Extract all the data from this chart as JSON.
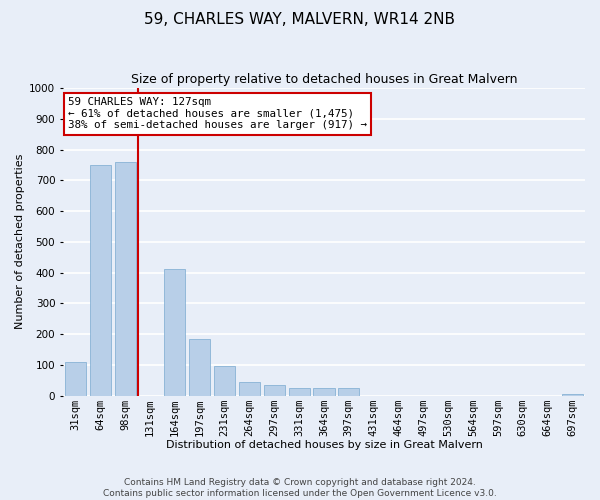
{
  "title": "59, CHARLES WAY, MALVERN, WR14 2NB",
  "subtitle": "Size of property relative to detached houses in Great Malvern",
  "xlabel": "Distribution of detached houses by size in Great Malvern",
  "ylabel": "Number of detached properties",
  "categories": [
    "31sqm",
    "64sqm",
    "98sqm",
    "131sqm",
    "164sqm",
    "197sqm",
    "231sqm",
    "264sqm",
    "297sqm",
    "331sqm",
    "364sqm",
    "397sqm",
    "431sqm",
    "464sqm",
    "497sqm",
    "530sqm",
    "564sqm",
    "597sqm",
    "630sqm",
    "664sqm",
    "697sqm"
  ],
  "values": [
    110,
    750,
    760,
    0,
    410,
    185,
    95,
    45,
    35,
    25,
    25,
    25,
    0,
    0,
    0,
    0,
    0,
    0,
    0,
    0,
    5
  ],
  "bar_color": "#b8cfe8",
  "bar_edge_color": "#7aaad0",
  "property_line_color": "#cc0000",
  "annotation_text_line1": "59 CHARLES WAY: 127sqm",
  "annotation_text_line2": "← 61% of detached houses are smaller (1,475)",
  "annotation_text_line3": "38% of semi-detached houses are larger (917) →",
  "annotation_box_color": "#ffffff",
  "annotation_box_edge_color": "#cc0000",
  "ylim": [
    0,
    1000
  ],
  "yticks": [
    0,
    100,
    200,
    300,
    400,
    500,
    600,
    700,
    800,
    900,
    1000
  ],
  "footer_line1": "Contains HM Land Registry data © Crown copyright and database right 2024.",
  "footer_line2": "Contains public sector information licensed under the Open Government Licence v3.0.",
  "background_color": "#e8eef8",
  "plot_background_color": "#e8eef8",
  "grid_color": "#ffffff",
  "title_fontsize": 11,
  "subtitle_fontsize": 9,
  "axis_label_fontsize": 8,
  "tick_fontsize": 7.5,
  "footer_fontsize": 6.5
}
